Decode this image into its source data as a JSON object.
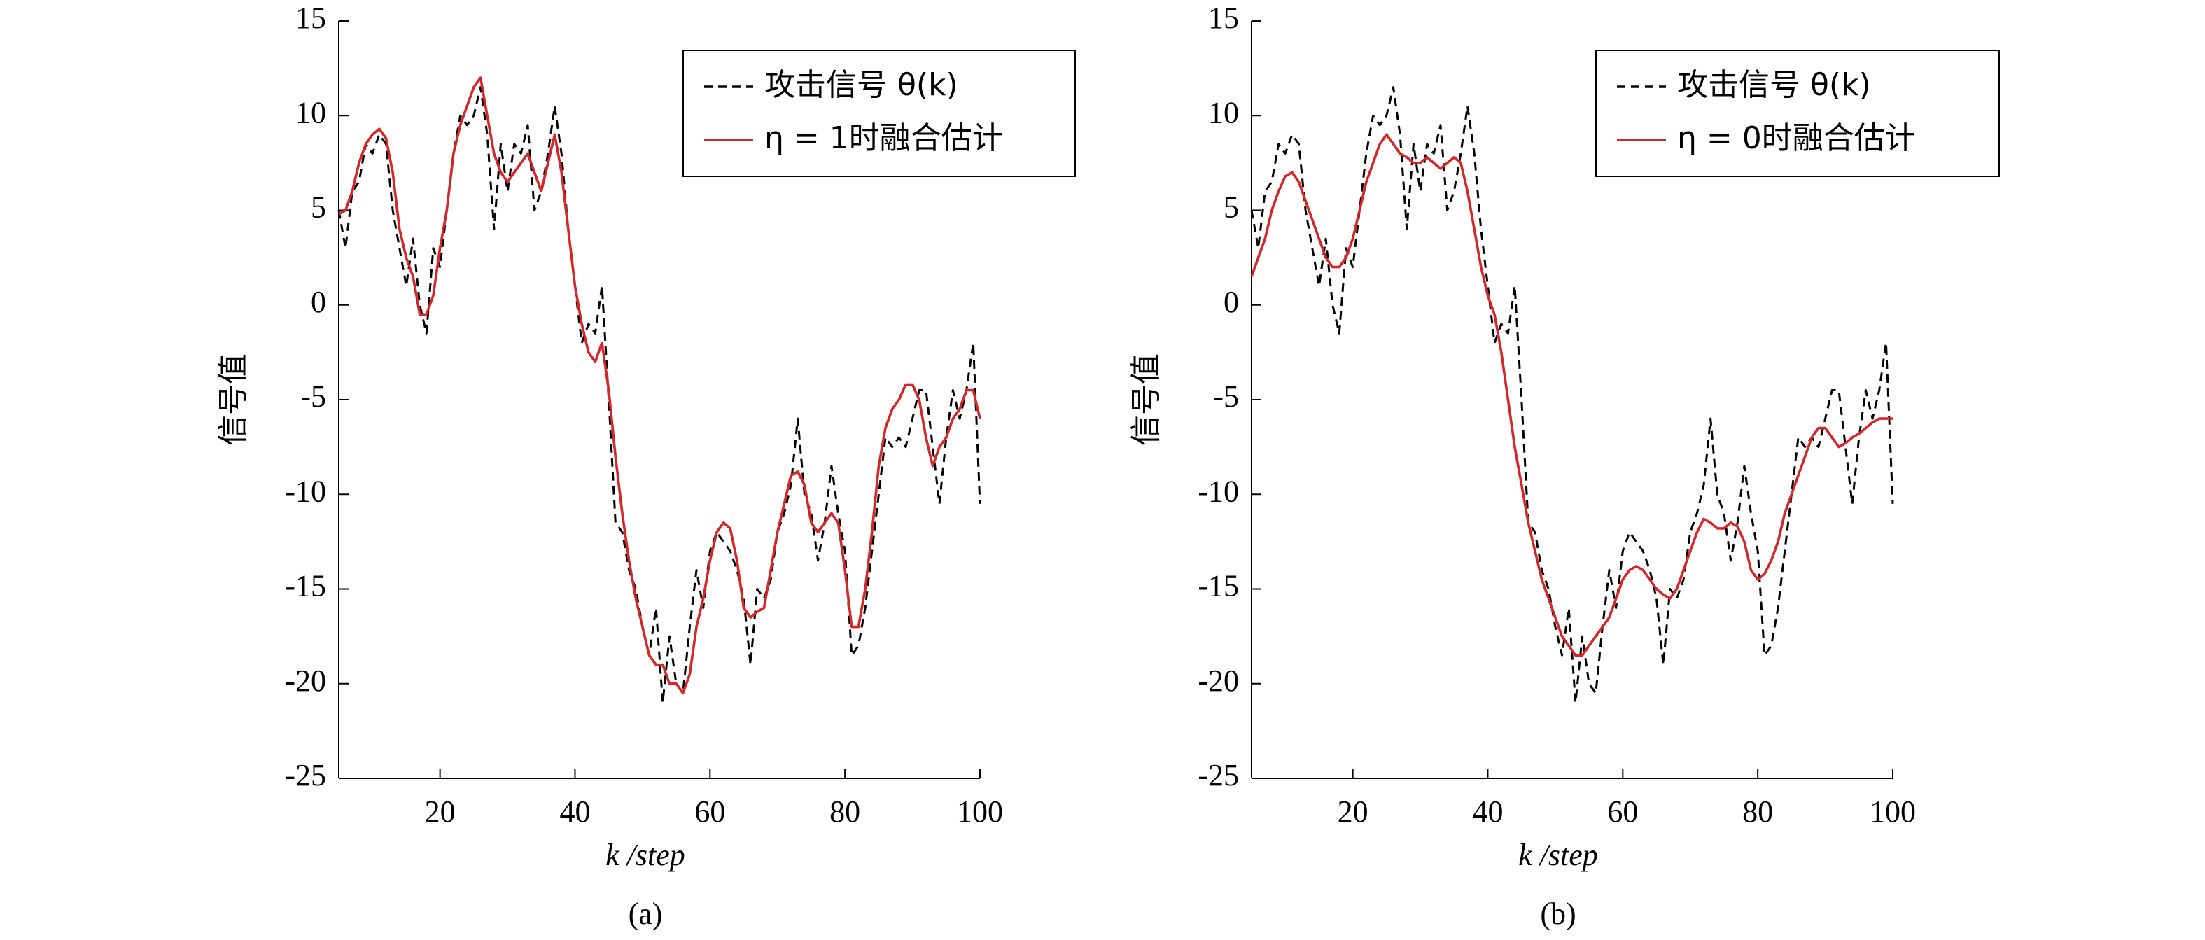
{
  "chart_data": [
    {
      "type": "line",
      "caption": "(a)",
      "xlabel": "k /step",
      "ylabel": "信号值",
      "x": [
        5,
        6,
        7,
        8,
        9,
        10,
        11,
        12,
        13,
        14,
        15,
        16,
        17,
        18,
        19,
        20,
        21,
        22,
        23,
        24,
        25,
        26,
        27,
        28,
        29,
        30,
        31,
        32,
        33,
        34,
        35,
        36,
        37,
        38,
        39,
        40,
        41,
        42,
        43,
        44,
        45,
        46,
        47,
        48,
        49,
        50,
        51,
        52,
        53,
        54,
        55,
        56,
        57,
        58,
        59,
        60,
        61,
        62,
        63,
        64,
        65,
        66,
        67,
        68,
        69,
        70,
        71,
        72,
        73,
        74,
        75,
        76,
        77,
        78,
        79,
        80,
        81,
        82,
        83,
        84,
        85,
        86,
        87,
        88,
        89,
        90,
        91,
        92,
        93,
        94,
        95,
        96,
        97,
        98,
        99,
        100
      ],
      "xlim": [
        5,
        100
      ],
      "xticks": [
        20,
        40,
        60,
        80,
        100
      ],
      "ylim": [
        -25,
        15
      ],
      "yticks": [
        -25,
        -20,
        -15,
        -10,
        -5,
        0,
        5,
        10,
        15
      ],
      "legend_position": "upper right",
      "series": [
        {
          "name": "攻击信号 θ(k)",
          "color": "#000000",
          "line_style": "dashed",
          "values": [
            5,
            3,
            6,
            6.5,
            8.5,
            8,
            9,
            8.5,
            5,
            3,
            1,
            3.5,
            0,
            -1.5,
            3,
            2,
            5,
            8,
            10,
            9.5,
            10,
            11.5,
            9,
            4,
            8.5,
            6,
            8.5,
            8,
            9.5,
            5,
            6,
            8,
            10.5,
            8,
            4,
            1,
            -2,
            -1,
            -1.5,
            1,
            -5,
            -11.5,
            -12,
            -14,
            -15,
            -17,
            -18.5,
            -16,
            -21,
            -17.5,
            -20,
            -20.5,
            -17,
            -14,
            -16,
            -13,
            -12,
            -12.5,
            -13,
            -14,
            -15.5,
            -19,
            -15,
            -15.5,
            -14.5,
            -12,
            -11,
            -9.5,
            -6,
            -10,
            -11,
            -13.5,
            -11.5,
            -8.5,
            -11,
            -13,
            -18.5,
            -18,
            -16,
            -13,
            -10,
            -7,
            -7.5,
            -7,
            -7.5,
            -6,
            -4.5,
            -4.5,
            -7.5,
            -10.5,
            -7,
            -4.5,
            -6,
            -4.5,
            -2,
            -10.5
          ]
        },
        {
          "name": "η = 1时融合估计",
          "color": "#d62728",
          "line_style": "solid",
          "values": [
            4.8,
            5,
            6,
            7.5,
            8.5,
            9,
            9.3,
            8.8,
            7,
            4,
            2.5,
            1.5,
            -0.5,
            -0.5,
            0.5,
            3,
            5,
            8,
            9.5,
            10.5,
            11.5,
            12,
            10,
            8,
            7,
            6.5,
            7,
            7.5,
            8,
            7,
            6,
            7.5,
            9,
            7,
            4,
            1,
            -1,
            -2.5,
            -3,
            -2,
            -4.5,
            -8,
            -11,
            -13.5,
            -15.5,
            -17,
            -18.5,
            -19,
            -19,
            -20,
            -20,
            -20.5,
            -19.5,
            -17,
            -15.5,
            -13.5,
            -12,
            -11.5,
            -11.8,
            -13.5,
            -16,
            -16.5,
            -16.2,
            -16,
            -14,
            -12,
            -10.5,
            -9,
            -8.8,
            -9.5,
            -11.5,
            -12,
            -11.5,
            -11,
            -11.5,
            -14,
            -17,
            -17,
            -15,
            -12,
            -8.5,
            -6.5,
            -5.5,
            -5,
            -4.2,
            -4.2,
            -5,
            -7,
            -8.5,
            -7.5,
            -7,
            -6,
            -5.5,
            -4.5,
            -4.5,
            -6
          ]
        }
      ]
    },
    {
      "type": "line",
      "caption": "(b)",
      "xlabel": "k /step",
      "ylabel": "信号值",
      "x": [
        5,
        6,
        7,
        8,
        9,
        10,
        11,
        12,
        13,
        14,
        15,
        16,
        17,
        18,
        19,
        20,
        21,
        22,
        23,
        24,
        25,
        26,
        27,
        28,
        29,
        30,
        31,
        32,
        33,
        34,
        35,
        36,
        37,
        38,
        39,
        40,
        41,
        42,
        43,
        44,
        45,
        46,
        47,
        48,
        49,
        50,
        51,
        52,
        53,
        54,
        55,
        56,
        57,
        58,
        59,
        60,
        61,
        62,
        63,
        64,
        65,
        66,
        67,
        68,
        69,
        70,
        71,
        72,
        73,
        74,
        75,
        76,
        77,
        78,
        79,
        80,
        81,
        82,
        83,
        84,
        85,
        86,
        87,
        88,
        89,
        90,
        91,
        92,
        93,
        94,
        95,
        96,
        97,
        98,
        99,
        100
      ],
      "xlim": [
        5,
        100
      ],
      "xticks": [
        20,
        40,
        60,
        80,
        100
      ],
      "ylim": [
        -25,
        15
      ],
      "yticks": [
        -25,
        -20,
        -15,
        -10,
        -5,
        0,
        5,
        10,
        15
      ],
      "legend_position": "upper right",
      "series": [
        {
          "name": "攻击信号 θ(k)",
          "color": "#000000",
          "line_style": "dashed",
          "values": [
            5,
            3,
            6,
            6.5,
            8.5,
            8,
            9,
            8.5,
            5,
            3,
            1,
            3.5,
            0,
            -1.5,
            3,
            2,
            5,
            8,
            10,
            9.5,
            10,
            11.5,
            9,
            4,
            8.5,
            6,
            8.5,
            8,
            9.5,
            5,
            6,
            8,
            10.5,
            8,
            4,
            1,
            -2,
            -1,
            -1.5,
            1,
            -5,
            -11.5,
            -12,
            -14,
            -15,
            -17,
            -18.5,
            -16,
            -21,
            -17.5,
            -20,
            -20.5,
            -17,
            -14,
            -16,
            -13,
            -12,
            -12.5,
            -13,
            -14,
            -15.5,
            -19,
            -15,
            -15.5,
            -14.5,
            -12,
            -11,
            -9.5,
            -6,
            -10,
            -11,
            -13.5,
            -11.5,
            -8.5,
            -11,
            -13,
            -18.5,
            -18,
            -16,
            -13,
            -10,
            -7,
            -7.5,
            -7,
            -7.5,
            -6,
            -4.5,
            -4.5,
            -7.5,
            -10.5,
            -7,
            -4.5,
            -6,
            -4.5,
            -2,
            -10.5
          ]
        },
        {
          "name": "η = 0时融合估计",
          "color": "#d62728",
          "line_style": "solid",
          "values": [
            1.5,
            2.5,
            3.5,
            5,
            6,
            6.8,
            7,
            6.5,
            5.5,
            4.5,
            3.5,
            2.5,
            2,
            2,
            2.5,
            3.5,
            5,
            6.5,
            7.5,
            8.5,
            9,
            8.5,
            8,
            7.8,
            7.5,
            7.5,
            7.8,
            7.5,
            7.2,
            7.5,
            7.8,
            7.5,
            6,
            4,
            2,
            0.5,
            -0.5,
            -2.5,
            -5,
            -7.5,
            -9.5,
            -11.5,
            -13,
            -14.5,
            -15.5,
            -16.5,
            -17.5,
            -18,
            -18.5,
            -18.5,
            -18,
            -17.5,
            -17,
            -16.5,
            -15.5,
            -14.5,
            -14,
            -13.8,
            -14,
            -14.5,
            -15,
            -15.3,
            -15.5,
            -15,
            -14,
            -13,
            -12,
            -11.3,
            -11.5,
            -11.8,
            -11.8,
            -11.5,
            -11.7,
            -12.5,
            -14,
            -14.5,
            -14.2,
            -13.5,
            -12.5,
            -11,
            -10,
            -9,
            -8,
            -7,
            -6.5,
            -6.5,
            -7,
            -7.5,
            -7.3,
            -7,
            -6.8,
            -6.5,
            -6.2,
            -6,
            -6,
            -6
          ]
        }
      ]
    }
  ]
}
